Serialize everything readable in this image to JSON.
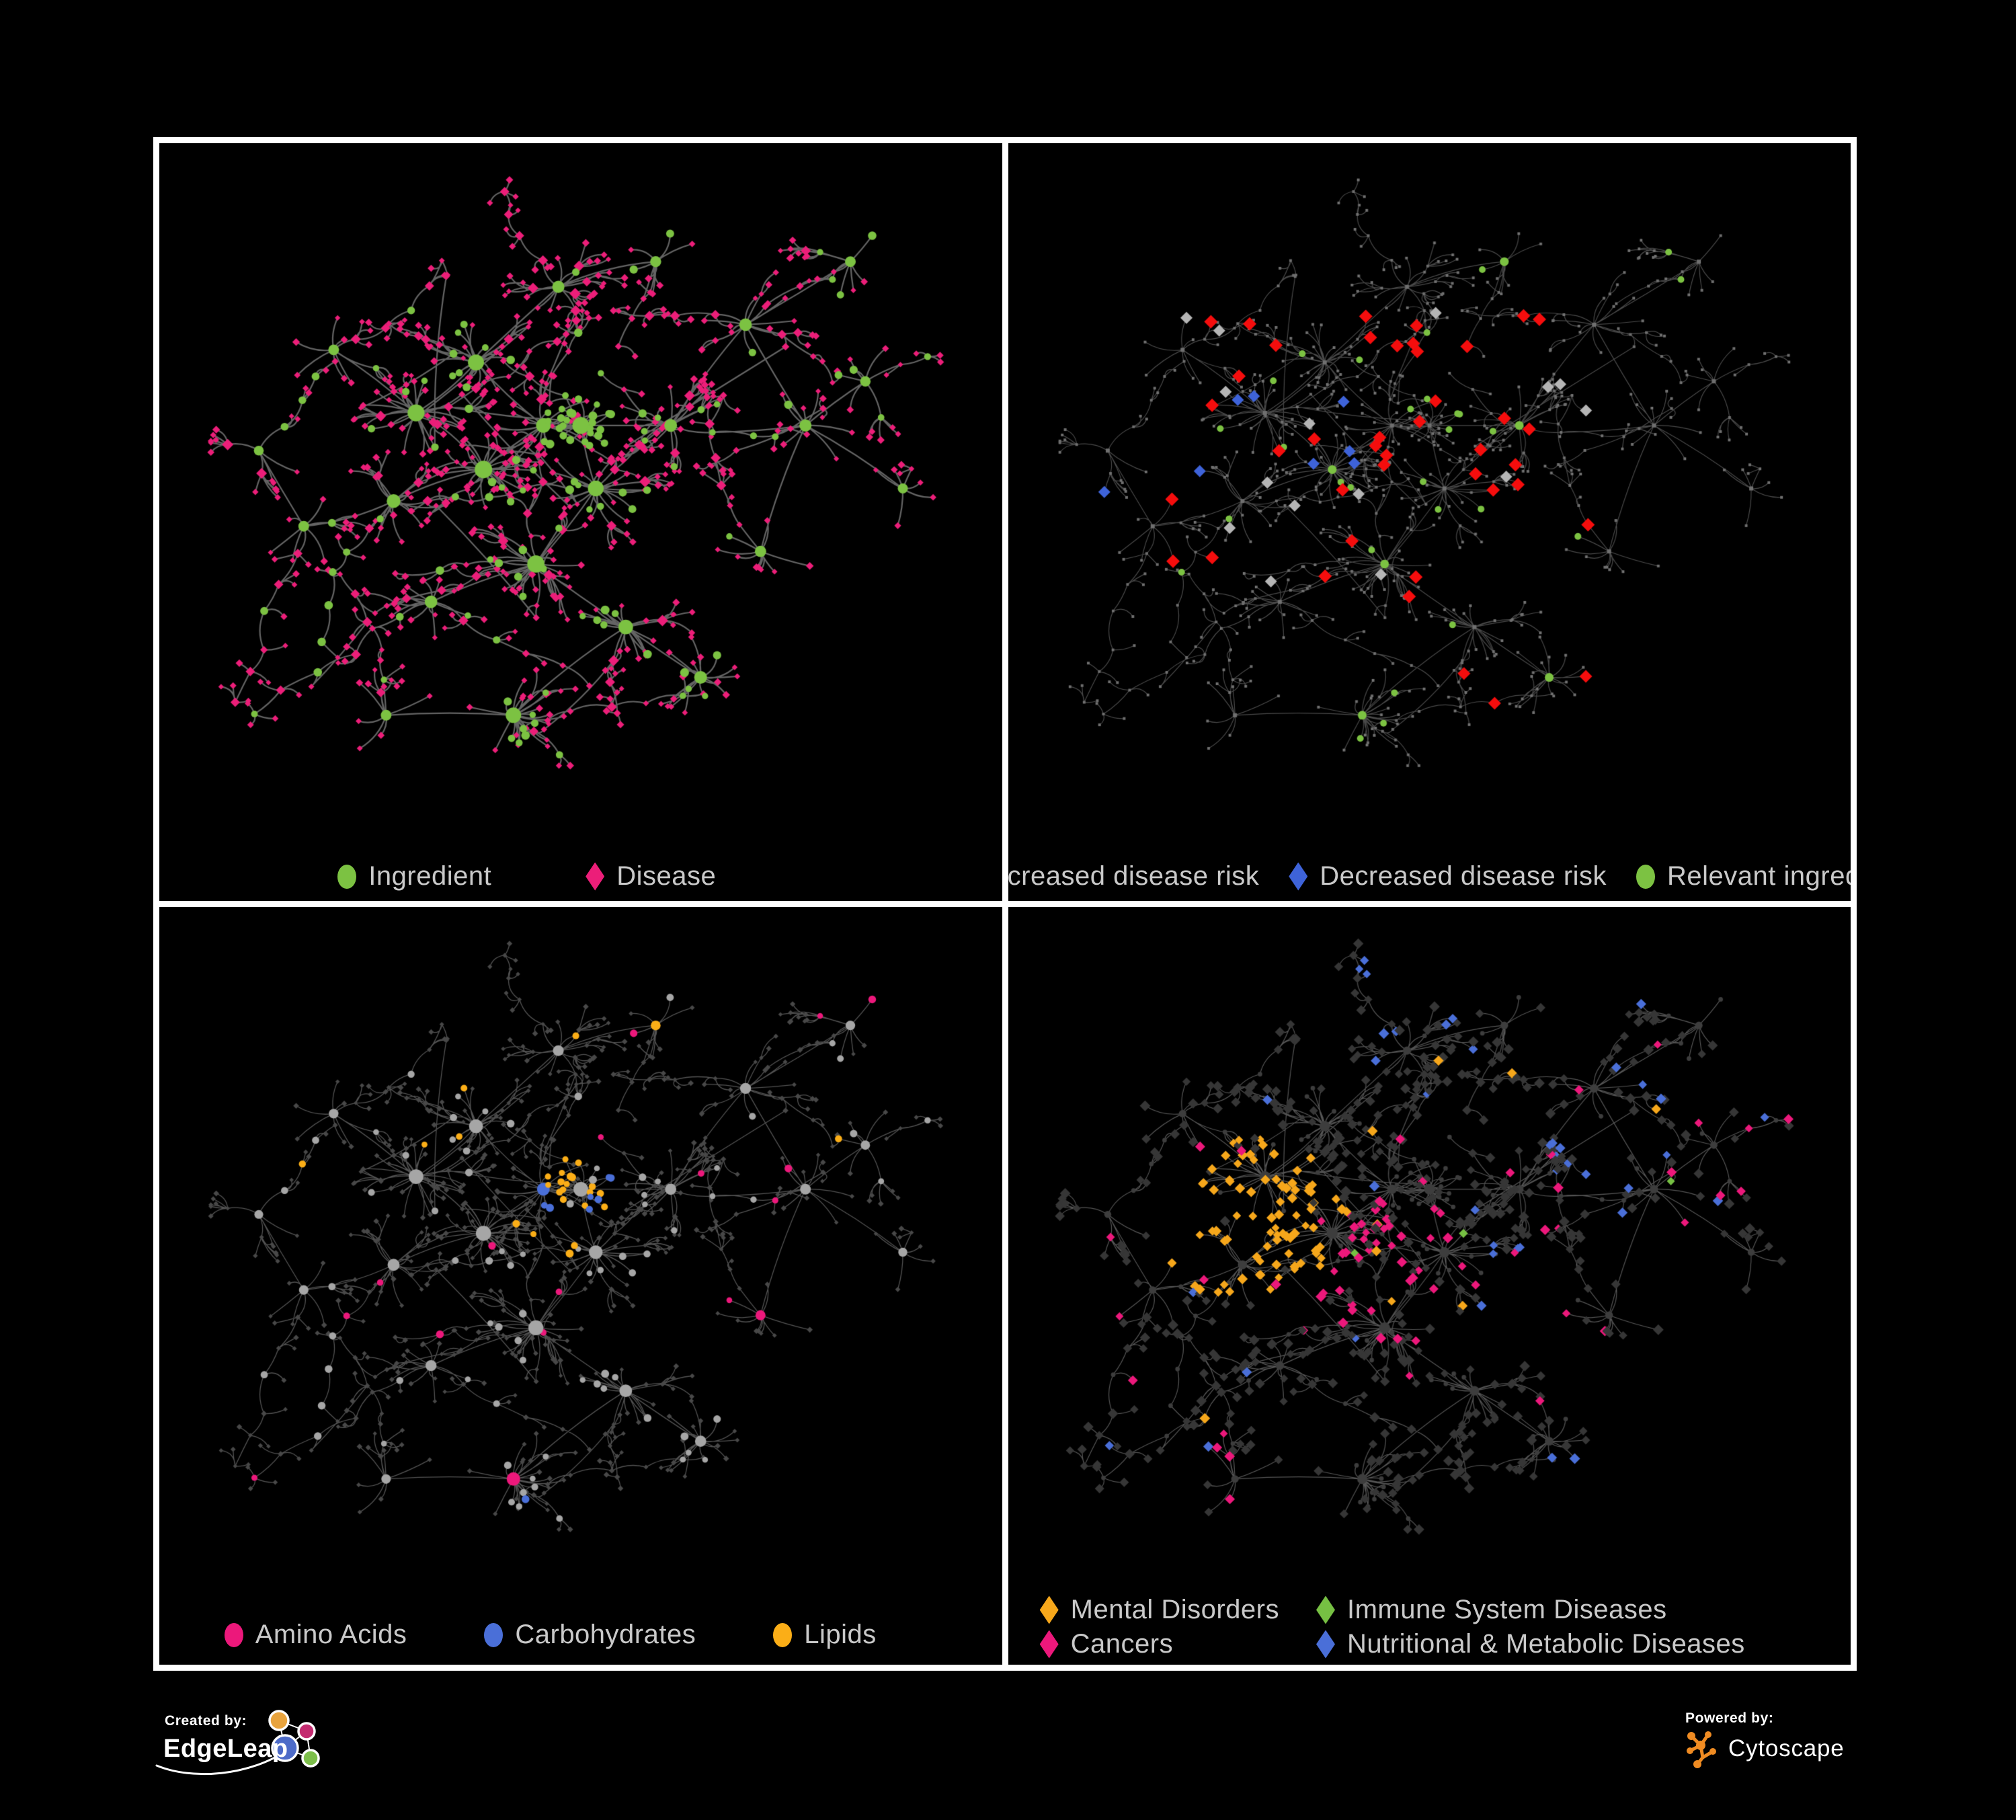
{
  "branding": {
    "created_by_label": "Created by:",
    "created_by_name": "EdgeLeap",
    "powered_by_label": "Powered by:",
    "powered_by_name": "Cytoscape"
  },
  "colors": {
    "background": "#000000",
    "frame": "#FFFFFF",
    "legend_text": "#C9C9C9",
    "edgeleap_orange": "#E8A33D",
    "edgeleap_magenta": "#C42B70",
    "edgeleap_blue": "#4D6BC8",
    "edgeleap_green": "#7CBE4A",
    "cytoscape_orange": "#EF8B22"
  },
  "panels": [
    {
      "name": "ingredient-disease",
      "legend": [
        {
          "label": "Ingredient",
          "shape": "circle",
          "color": "#7CC242"
        },
        {
          "label": "Disease",
          "shape": "diamond",
          "color": "#EC1E79"
        }
      ]
    },
    {
      "name": "disease-risk",
      "legend": [
        {
          "label": "Increased disease risk",
          "shape": "diamond",
          "color": "#F50D0D"
        },
        {
          "label": "Decreased disease risk",
          "shape": "diamond",
          "color": "#3E63D9"
        },
        {
          "label": "Relevant ingredient",
          "shape": "circle",
          "color": "#7CC242"
        }
      ]
    },
    {
      "name": "nutrient-classes",
      "legend": [
        {
          "label": "Amino Acids",
          "shape": "circle",
          "color": "#EC187B"
        },
        {
          "label": "Carbohydrates",
          "shape": "circle",
          "color": "#4A6FD8"
        },
        {
          "label": "Lipids",
          "shape": "circle",
          "color": "#FBAE17"
        }
      ]
    },
    {
      "name": "disease-categories",
      "legend": [
        {
          "label": "Mental Disorders",
          "shape": "diamond",
          "color": "#F6A71B"
        },
        {
          "label": "Immune System Diseases",
          "shape": "diamond",
          "color": "#76C043"
        },
        {
          "label": "Cancers",
          "shape": "diamond",
          "color": "#EC187B"
        },
        {
          "label": "Nutritional & Metabolic Diseases",
          "shape": "diamond",
          "color": "#4A6FD8"
        }
      ]
    }
  ],
  "styles": {
    "p1": {
      "edge": "#6F6F6F",
      "edge_width": 2.2,
      "edge_alpha": 0.9,
      "ingredient": "#7CC242",
      "disease": "#EC1E79"
    },
    "p2": {
      "edge": "#4D4D4D",
      "edge_width": 1.2,
      "edge_alpha": 0.95,
      "node": "#6F6F6F",
      "increased": "#F50D0D",
      "decreased": "#3E63D9",
      "neutral": "#B5B5B5",
      "relevant": "#7CC242"
    },
    "p3": {
      "edge": "#8A8A8A",
      "edge_width": 1.3,
      "edge_alpha": 0.6,
      "disease": "#484848",
      "ingredient": "#A6A6A6",
      "amino": "#EC187B",
      "carb": "#4A6FD8",
      "lipid": "#FBAE17",
      "lipid_center": [
        0.5,
        0.4
      ],
      "lipid_center2": [
        0.52,
        0.5
      ],
      "amino_center": [
        0.72,
        0.63
      ]
    },
    "p4": {
      "edge": "#6A6A6A",
      "edge_width": 1.2,
      "edge_alpha": 0.8,
      "ingredient": "#3D3D3D",
      "disease": "#363636",
      "mental": "#F6A71B",
      "immune": "#76C043",
      "cancer": "#EC187B",
      "nutritional": "#4A6FD8",
      "mental_center": [
        0.26,
        0.45
      ],
      "cancer_center": [
        0.45,
        0.53
      ],
      "nutritional_center": [
        0.6,
        0.55
      ]
    }
  },
  "network": {
    "seed": 42,
    "cross_links": 30,
    "leaf_disease_p": 0.78,
    "hubs": [
      [
        0.36,
        0.3,
        22,
        2,
        0
      ],
      [
        0.28,
        0.38,
        26,
        2,
        0
      ],
      [
        0.45,
        0.4,
        18,
        1,
        0
      ],
      [
        0.5,
        0.4,
        26,
        1,
        1
      ],
      [
        0.37,
        0.47,
        28,
        2,
        0
      ],
      [
        0.25,
        0.52,
        15,
        2,
        0
      ],
      [
        0.52,
        0.5,
        22,
        2,
        0
      ],
      [
        0.44,
        0.62,
        26,
        2,
        0
      ],
      [
        0.3,
        0.68,
        12,
        2,
        0
      ],
      [
        0.56,
        0.72,
        18,
        1,
        0
      ],
      [
        0.62,
        0.4,
        12,
        2,
        0
      ],
      [
        0.72,
        0.24,
        10,
        2,
        0
      ],
      [
        0.8,
        0.4,
        8,
        1,
        0
      ],
      [
        0.47,
        0.18,
        10,
        2,
        0
      ],
      [
        0.66,
        0.8,
        14,
        1,
        0
      ],
      [
        0.17,
        0.28,
        7,
        1,
        0
      ],
      [
        0.13,
        0.56,
        6,
        1,
        0
      ],
      [
        0.86,
        0.14,
        7,
        1,
        0
      ],
      [
        0.88,
        0.33,
        6,
        1,
        0
      ],
      [
        0.41,
        0.86,
        22,
        1,
        0
      ],
      [
        0.07,
        0.44,
        4,
        1,
        0
      ],
      [
        0.93,
        0.5,
        5,
        1,
        0
      ],
      [
        0.24,
        0.86,
        7,
        1,
        0
      ],
      [
        0.74,
        0.6,
        9,
        1,
        0
      ],
      [
        0.6,
        0.14,
        8,
        1,
        0
      ]
    ]
  }
}
